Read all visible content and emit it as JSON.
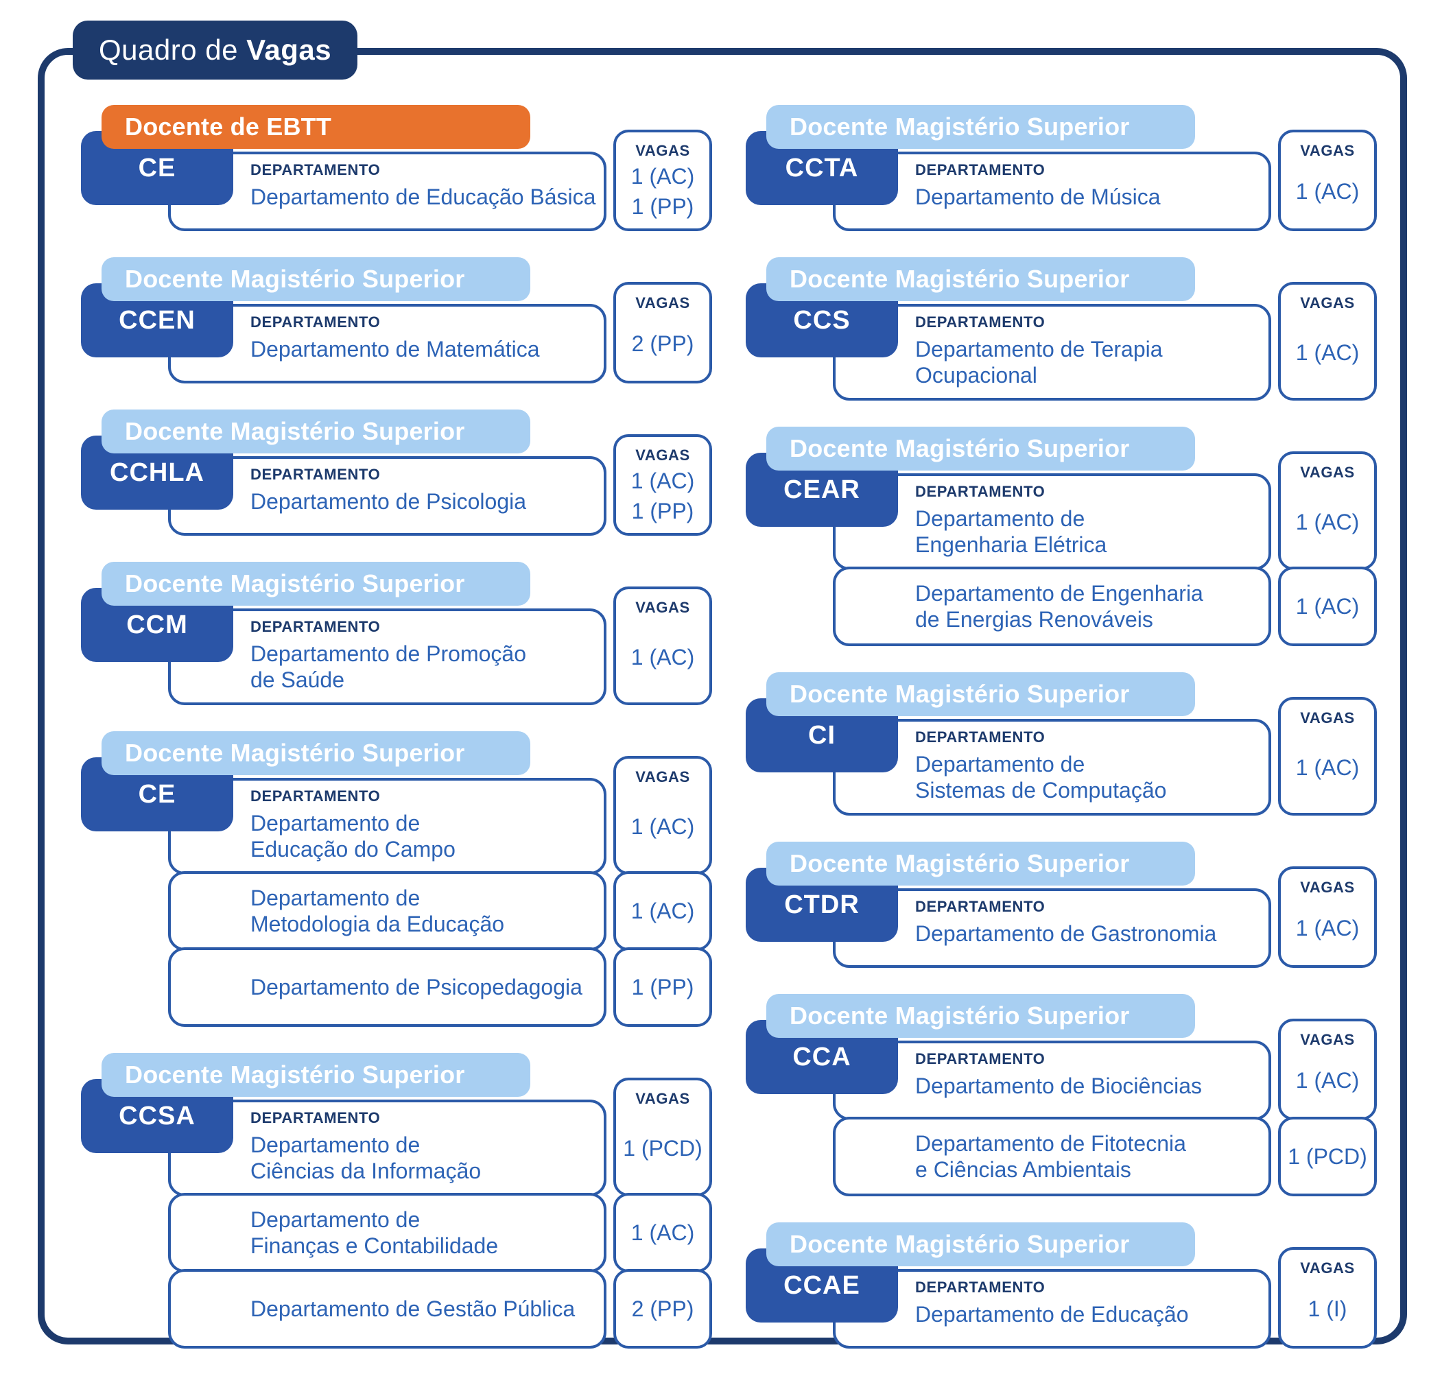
{
  "title": {
    "text_regular": "Quadro de ",
    "text_bold": "Vagas"
  },
  "labels": {
    "department_header": "DEPARTAMENTO",
    "vagas_header": "VAGAS"
  },
  "colors": {
    "navy": "#1d3a6c",
    "card_border": "#2b5aa8",
    "badge_blue": "#2b55a7",
    "light_blue": "#a8cff2",
    "orange": "#e8722d",
    "text_blue": "#2d63b5",
    "background": "#ffffff"
  },
  "columns": [
    [
      {
        "role": "Docente de EBTT",
        "role_style": "orange",
        "center": "CE",
        "rows": [
          {
            "department_lines": [
              "Departamento de Educação Básica"
            ],
            "vagas": [
              "1 (AC)",
              "1 (PP)"
            ]
          }
        ]
      },
      {
        "role": "Docente Magistério Superior",
        "role_style": "blue",
        "center": "CCEN",
        "rows": [
          {
            "department_lines": [
              "Departamento de Matemática"
            ],
            "vagas": [
              "2 (PP)"
            ]
          }
        ]
      },
      {
        "role": "Docente Magistério Superior",
        "role_style": "blue",
        "center": "CCHLA",
        "rows": [
          {
            "department_lines": [
              "Departamento de Psicologia"
            ],
            "vagas": [
              "1 (AC)",
              "1 (PP)"
            ]
          }
        ]
      },
      {
        "role": "Docente Magistério Superior",
        "role_style": "blue",
        "center": "CCM",
        "rows": [
          {
            "department_lines": [
              "Departamento de Promoção",
              "de Saúde"
            ],
            "vagas": [
              "1 (AC)"
            ]
          }
        ]
      },
      {
        "role": "Docente Magistério Superior",
        "role_style": "blue",
        "center": "CE",
        "rows": [
          {
            "department_lines": [
              "Departamento de",
              "Educação do Campo"
            ],
            "vagas": [
              "1 (AC)"
            ]
          },
          {
            "department_lines": [
              "Departamento de",
              "Metodologia da Educação"
            ],
            "vagas": [
              "1 (AC)"
            ]
          },
          {
            "department_lines": [
              "Departamento de Psicopedagogia"
            ],
            "vagas": [
              "1 (PP)"
            ]
          }
        ]
      },
      {
        "role": "Docente Magistério Superior",
        "role_style": "blue",
        "center": "CCSA",
        "rows": [
          {
            "department_lines": [
              "Departamento de",
              "Ciências da Informação"
            ],
            "vagas": [
              "1 (PCD)"
            ]
          },
          {
            "department_lines": [
              "Departamento de",
              "Finanças e Contabilidade"
            ],
            "vagas": [
              "1 (AC)"
            ]
          },
          {
            "department_lines": [
              "Departamento de Gestão Pública"
            ],
            "vagas": [
              "2 (PP)"
            ]
          }
        ]
      }
    ],
    [
      {
        "role": "Docente Magistério Superior",
        "role_style": "blue",
        "center": "CCTA",
        "rows": [
          {
            "department_lines": [
              "Departamento de Música"
            ],
            "vagas": [
              "1 (AC)"
            ]
          }
        ]
      },
      {
        "role": "Docente Magistério Superior",
        "role_style": "blue",
        "center": "CCS",
        "rows": [
          {
            "department_lines": [
              "Departamento de Terapia",
              "Ocupacional"
            ],
            "vagas": [
              "1 (AC)"
            ]
          }
        ]
      },
      {
        "role": "Docente Magistério Superior",
        "role_style": "blue",
        "center": "CEAR",
        "rows": [
          {
            "department_lines": [
              "Departamento de",
              "Engenharia Elétrica"
            ],
            "vagas": [
              "1 (AC)"
            ]
          },
          {
            "department_lines": [
              "Departamento de Engenharia",
              "de Energias Renováveis"
            ],
            "vagas": [
              "1 (AC)"
            ]
          }
        ]
      },
      {
        "role": "Docente Magistério Superior",
        "role_style": "blue",
        "center": "CI",
        "rows": [
          {
            "department_lines": [
              "Departamento de",
              "Sistemas de Computação"
            ],
            "vagas": [
              "1 (AC)"
            ]
          }
        ]
      },
      {
        "role": "Docente Magistério Superior",
        "role_style": "blue",
        "center": "CTDR",
        "rows": [
          {
            "department_lines": [
              "Departamento de Gastronomia"
            ],
            "vagas": [
              "1 (AC)"
            ]
          }
        ]
      },
      {
        "role": "Docente Magistério Superior",
        "role_style": "blue",
        "center": "CCA",
        "rows": [
          {
            "department_lines": [
              "Departamento de Biociências"
            ],
            "vagas": [
              "1 (AC)"
            ]
          },
          {
            "department_lines": [
              "Departamento de Fitotecnia",
              "e Ciências Ambientais"
            ],
            "vagas": [
              "1 (PCD)"
            ]
          }
        ]
      },
      {
        "role": "Docente Magistério Superior",
        "role_style": "blue",
        "center": "CCAE",
        "rows": [
          {
            "department_lines": [
              "Departamento de Educação"
            ],
            "vagas": [
              "1 (I)"
            ]
          }
        ]
      }
    ]
  ]
}
